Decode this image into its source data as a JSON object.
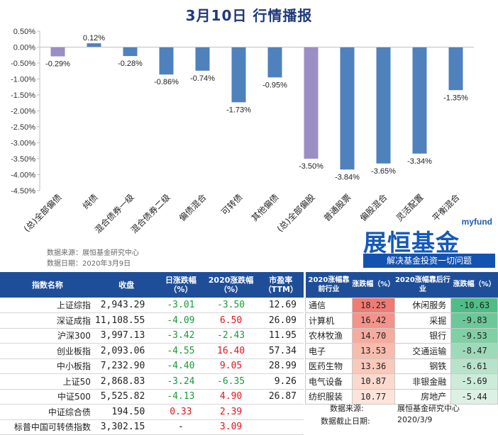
{
  "title": "3月10日  行情播报",
  "chart_data": {
    "type": "bar",
    "categories": [
      "(总)全部偏债",
      "纯债",
      "混合债券一级",
      "混合债券二级",
      "偏债混合",
      "可转债",
      "其他偏债",
      "(总)全部偏股",
      "普通股票",
      "偏股混合",
      "灵活配置",
      "平衡混合"
    ],
    "values": [
      -0.29,
      0.12,
      -0.28,
      -0.86,
      -0.74,
      -1.73,
      -0.95,
      -3.5,
      -3.84,
      -3.65,
      -3.34,
      -1.35
    ],
    "data_labels": [
      "-0.29%",
      "0.12%",
      "-0.28%",
      "-0.86%",
      "-0.74%",
      "-1.73%",
      "-0.95%",
      "-3.50%",
      "-3.84%",
      "-3.65%",
      "-3.34%",
      "-1.35%"
    ],
    "highlight_indices": [
      0,
      7
    ],
    "colors": {
      "default": "#4f81bd",
      "highlight": "#9b8ec5"
    },
    "ylim": [
      -4.5,
      0.5
    ],
    "yticks": [
      0.5,
      0.0,
      -0.5,
      -1.0,
      -1.5,
      -2.0,
      -2.5,
      -3.0,
      -3.5,
      -4.0,
      -4.5
    ],
    "ytick_labels": [
      "0.50%",
      "0.00%",
      "-0.50%",
      "-1.00%",
      "-1.50%",
      "-2.00%",
      "-2.50%",
      "-3.00%",
      "-3.50%",
      "-4.00%",
      "-4.50%"
    ],
    "grid": false,
    "title": "",
    "xlabel": "",
    "ylabel": ""
  },
  "source": {
    "line1": "数据来源：展恒基金研究中心",
    "line2": "数据日期：2020年3月9日"
  },
  "logo": {
    "top": "myfund",
    "main": "展恒基金",
    "sub": "解决基金投资一切问题"
  },
  "index_table": {
    "headers": [
      "指数名称",
      "收盘",
      "日涨跌幅（%）",
      "2020涨跌幅（%）",
      "市盈率（TTM）"
    ],
    "rows": [
      {
        "name": "上证综指",
        "close": "2,943.29",
        "day": "-3.01",
        "ytd": "-3.50",
        "pe": "12.69"
      },
      {
        "name": "深证成指",
        "close": "11,108.55",
        "day": "-4.09",
        "ytd": "6.50",
        "pe": "26.09"
      },
      {
        "name": "沪深300",
        "close": "3,997.13",
        "day": "-3.42",
        "ytd": "-2.43",
        "pe": "11.95"
      },
      {
        "name": "创业板指",
        "close": "2,093.06",
        "day": "-4.55",
        "ytd": "16.40",
        "pe": "57.34"
      },
      {
        "name": "中小板指",
        "close": "7,232.90",
        "day": "-4.40",
        "ytd": "9.05",
        "pe": "28.99"
      },
      {
        "name": "上证50",
        "close": "2,868.83",
        "day": "-3.24",
        "ytd": "-6.35",
        "pe": "9.26"
      },
      {
        "name": "中证500",
        "close": "5,525.82",
        "day": "-4.13",
        "ytd": "4.90",
        "pe": "26.87"
      },
      {
        "name": "中证综合债",
        "close": "194.50",
        "day": "0.33",
        "ytd": "2.39",
        "pe": ""
      },
      {
        "name": "标普中国可转债指数",
        "close": "3,302.15",
        "day": "-",
        "ytd": "3.09",
        "pe": ""
      }
    ]
  },
  "industry_table": {
    "headers": [
      "2020涨幅靠前行业",
      "涨跌幅（%）",
      "2020涨幅靠后行业",
      "涨跌幅（%）"
    ],
    "rows": [
      {
        "top": "通信",
        "top_val": "18.25",
        "bot": "休闲服务",
        "bot_val": "-10.63"
      },
      {
        "top": "计算机",
        "top_val": "16.42",
        "bot": "采掘",
        "bot_val": "-9.83"
      },
      {
        "top": "农林牧渔",
        "top_val": "14.70",
        "bot": "银行",
        "bot_val": "-9.53"
      },
      {
        "top": "电子",
        "top_val": "13.53",
        "bot": "交通运输",
        "bot_val": "-8.47"
      },
      {
        "top": "医药生物",
        "top_val": "13.36",
        "bot": "钢铁",
        "bot_val": "-6.61"
      },
      {
        "top": "电气设备",
        "top_val": "10.87",
        "bot": "非银金融",
        "bot_val": "-5.69"
      },
      {
        "top": "纺织服装",
        "top_val": "10.77",
        "bot": "房地产",
        "bot_val": "-5.44"
      }
    ],
    "top_colors": [
      "#f07b73",
      "#f3938a",
      "#f6ab9e",
      "#f8bcad",
      "#f9c9bb",
      "#fbd9cd",
      "#fce4d9"
    ],
    "bot_colors": [
      "#4fbd86",
      "#6cc898",
      "#80cfa5",
      "#9ed9b9",
      "#b8e3cb",
      "#cdebd9",
      "#dcf1e4"
    ]
  },
  "footer": {
    "src_label": "数据来源:",
    "src_value": "展恒基金研究中心",
    "date_label": "数据截止日期:",
    "date_value": "2020/3/9"
  }
}
